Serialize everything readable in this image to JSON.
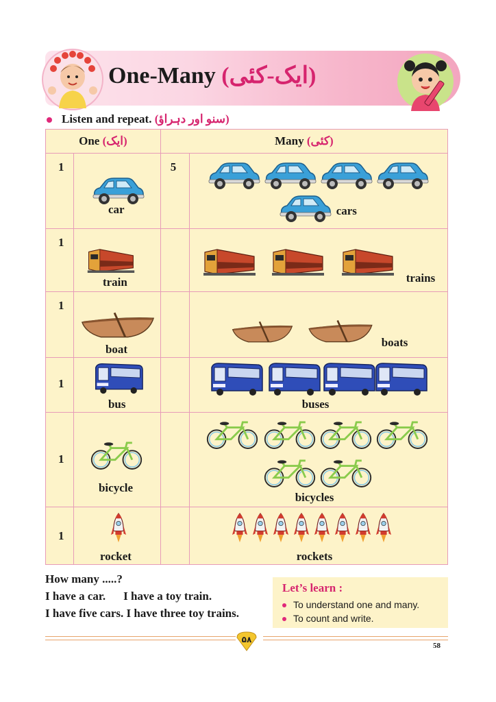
{
  "header": {
    "title": "One-Many",
    "title_urdu": "(ایک-کئی)"
  },
  "instruction": {
    "text": "Listen and repeat.",
    "urdu": "(سنو اور دہراؤ)"
  },
  "table": {
    "col_one": "One",
    "col_one_urdu": "(ایک)",
    "col_many": "Many",
    "col_many_urdu": "(کئی)",
    "rows": [
      {
        "one_count": "1",
        "one_label": "car",
        "many_count": "5",
        "many_label": "cars"
      },
      {
        "one_count": "1",
        "one_label": "train",
        "many_count": "",
        "many_label": "trains"
      },
      {
        "one_count": "1",
        "one_label": "boat",
        "many_count": "",
        "many_label": "boats"
      },
      {
        "one_count": "1",
        "one_label": "bus",
        "many_count": "",
        "many_label": "buses"
      },
      {
        "one_count": "1",
        "one_label": "bicycle",
        "many_count": "",
        "many_label": "bicycles"
      },
      {
        "one_count": "1",
        "one_label": "rocket",
        "many_count": "",
        "many_label": "rockets"
      }
    ]
  },
  "bottom": {
    "question": "How many .....?",
    "line1a": "I have a car.",
    "line1b": "I have a toy train.",
    "line2a": "I have five cars.",
    "line2b": "I have three toy trains."
  },
  "lets_learn": {
    "title": "Let’s learn :",
    "items": [
      "To understand one and many.",
      "To count and write."
    ]
  },
  "footer": {
    "page_badge": "۵۸",
    "page_number": "58"
  },
  "colors": {
    "accent": "#d6246e",
    "table_bg": "#fdf3c9",
    "border": "#e79bb8"
  },
  "icons": [
    "car-icon",
    "train-icon",
    "boat-icon",
    "bus-icon",
    "bicycle-icon",
    "rocket-icon"
  ]
}
